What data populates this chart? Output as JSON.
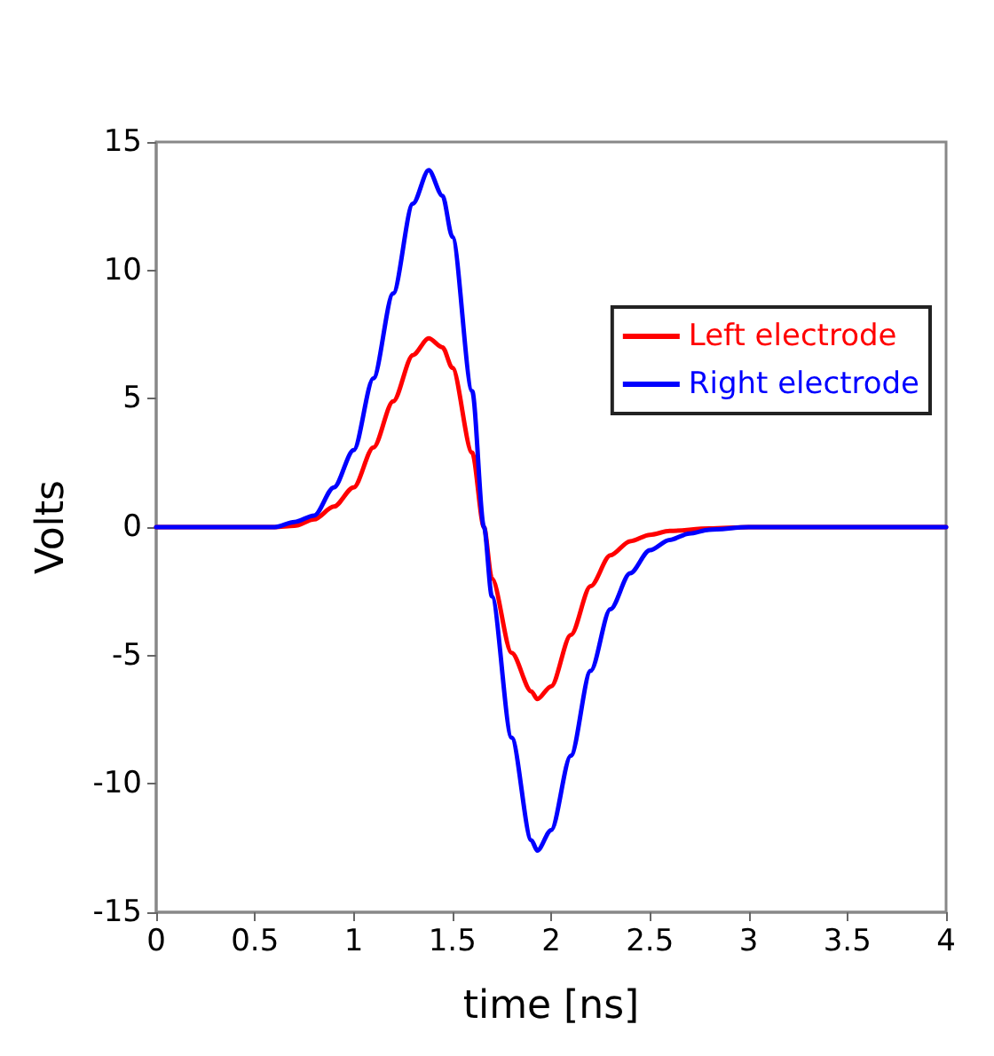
{
  "chart_data": {
    "type": "line",
    "xlabel": "time [ns]",
    "ylabel": "Volts",
    "xlim": [
      0,
      4
    ],
    "xticks": [
      0,
      0.5,
      1,
      1.5,
      2,
      2.5,
      3,
      3.5,
      4
    ],
    "ylim": [
      -15,
      15
    ],
    "yticks": [
      -15,
      -10,
      -5,
      0,
      5,
      10,
      15
    ],
    "grid": false,
    "legend": "top right",
    "marker": "none",
    "line_style": "solid",
    "series": [
      {
        "name": "Left electrode",
        "color": "#ff0000",
        "x": [
          0,
          0.6,
          0.7,
          0.8,
          0.9,
          1.0,
          1.1,
          1.2,
          1.3,
          1.38,
          1.45,
          1.5,
          1.6,
          1.66,
          1.7,
          1.8,
          1.9,
          1.93,
          2.0,
          2.1,
          2.2,
          2.3,
          2.4,
          2.5,
          2.6,
          2.8,
          3.0,
          4
        ],
        "values": [
          0,
          0,
          0.05,
          0.3,
          0.8,
          1.55,
          3.1,
          4.9,
          6.7,
          7.35,
          7.0,
          6.2,
          2.9,
          0,
          -2.0,
          -4.9,
          -6.4,
          -6.7,
          -6.2,
          -4.2,
          -2.3,
          -1.1,
          -0.55,
          -0.3,
          -0.15,
          -0.05,
          0,
          0
        ]
      },
      {
        "name": "Right electrode",
        "color": "#0000ff",
        "x": [
          0,
          0.6,
          0.7,
          0.8,
          0.9,
          1.0,
          1.1,
          1.2,
          1.3,
          1.38,
          1.45,
          1.5,
          1.6,
          1.66,
          1.7,
          1.8,
          1.9,
          1.93,
          2.0,
          2.1,
          2.2,
          2.3,
          2.4,
          2.5,
          2.6,
          2.7,
          2.8,
          3.0,
          4
        ],
        "values": [
          0,
          0,
          0.2,
          0.45,
          1.55,
          3.0,
          5.8,
          9.1,
          12.6,
          13.9,
          12.9,
          11.3,
          5.3,
          0,
          -2.7,
          -8.2,
          -12.2,
          -12.6,
          -11.8,
          -8.9,
          -5.6,
          -3.2,
          -1.8,
          -0.9,
          -0.5,
          -0.25,
          -0.1,
          0,
          0
        ]
      }
    ]
  }
}
